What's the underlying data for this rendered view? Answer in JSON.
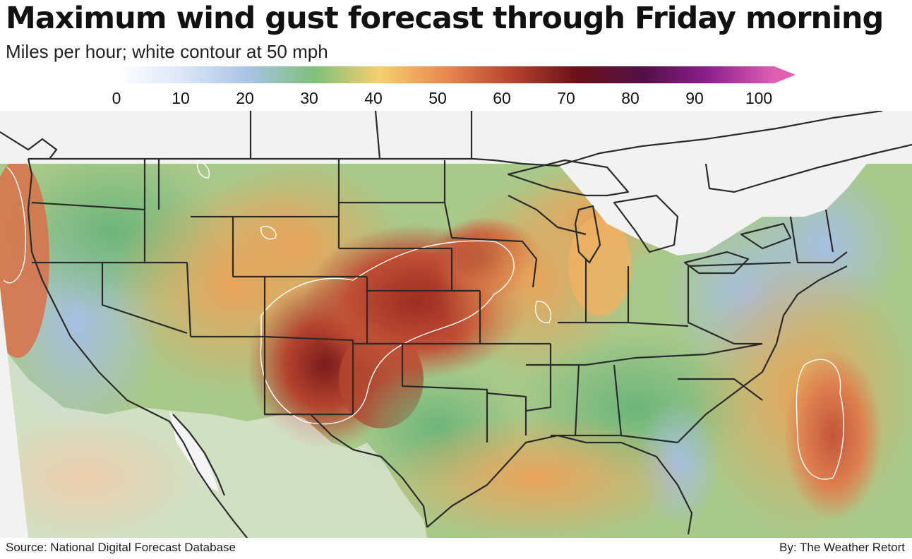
{
  "title": "Maximum wind gust forecast through Friday morning",
  "subtitle": "Miles per hour; white contour at 50 mph",
  "legend": {
    "ticks": [
      "0",
      "10",
      "20",
      "30",
      "40",
      "50",
      "60",
      "70",
      "80",
      "90",
      "100"
    ],
    "min": 0,
    "max": 100,
    "unit": "mph",
    "open_ended_top": true,
    "color_stops": [
      {
        "value": 0,
        "color": "#ffffff"
      },
      {
        "value": 10,
        "color": "#dbe6f7"
      },
      {
        "value": 20,
        "color": "#a9c3e6"
      },
      {
        "value": 30,
        "color": "#7fc07c"
      },
      {
        "value": 40,
        "color": "#f6cf6e"
      },
      {
        "value": 50,
        "color": "#e9884f"
      },
      {
        "value": 60,
        "color": "#b7432f"
      },
      {
        "value": 70,
        "color": "#6b1018"
      },
      {
        "value": 80,
        "color": "#531046"
      },
      {
        "value": 90,
        "color": "#8e1f8f"
      },
      {
        "value": 100,
        "color": "#df5fb3"
      }
    ]
  },
  "contour": {
    "value": 50,
    "color": "#ffffff"
  },
  "map": {
    "region": "Contiguous United States",
    "colors": {
      "land_outside": "#f2f2f2",
      "water_outside": "#f4f4f4",
      "border": "#2b2b2b"
    }
  },
  "source": "Source: National Digital Forecast Database",
  "credit": "By: The Weather Retort"
}
